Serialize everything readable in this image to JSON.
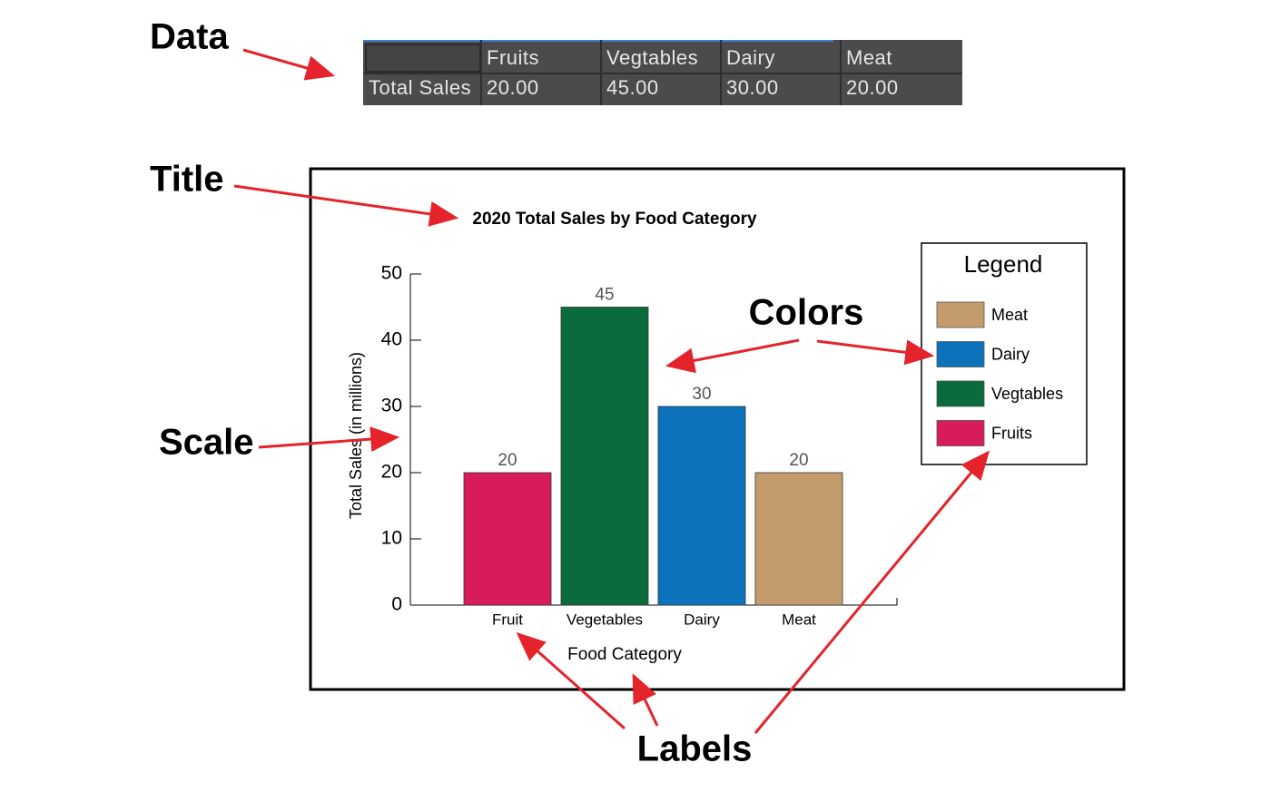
{
  "annotations": {
    "data": "Data",
    "title": "Title",
    "scale": "Scale",
    "colors": "Colors",
    "labels": "Labels"
  },
  "table": {
    "columns": [
      "Fruits",
      "Vegtables",
      "Dairy",
      "Meat"
    ],
    "rows": [
      {
        "label": "Total Sales",
        "cells": [
          "20.00",
          "45.00",
          "30.00",
          "20.00"
        ]
      }
    ]
  },
  "chart_data": {
    "type": "bar",
    "title": "2020 Total Sales by Food Category",
    "categories": [
      "Fruit",
      "Vegetables",
      "Dairy",
      "Meat"
    ],
    "values": [
      20,
      45,
      30,
      20
    ],
    "colors": [
      "#d81b5a",
      "#0a6b3c",
      "#0c72bb",
      "#c49b6c"
    ],
    "xlabel": "Food Category",
    "ylabel": "Total Sales (in millions)",
    "ylim": [
      0,
      50
    ],
    "yticks": [
      0,
      10,
      20,
      30,
      40,
      50
    ],
    "legend": {
      "title": "Legend",
      "items": [
        {
          "name": "Meat",
          "color": "#c49b6c"
        },
        {
          "name": "Dairy",
          "color": "#0c72bb"
        },
        {
          "name": "Vegtables",
          "color": "#0a6b3c"
        },
        {
          "name": "Fruits",
          "color": "#d81b5a"
        }
      ]
    }
  }
}
